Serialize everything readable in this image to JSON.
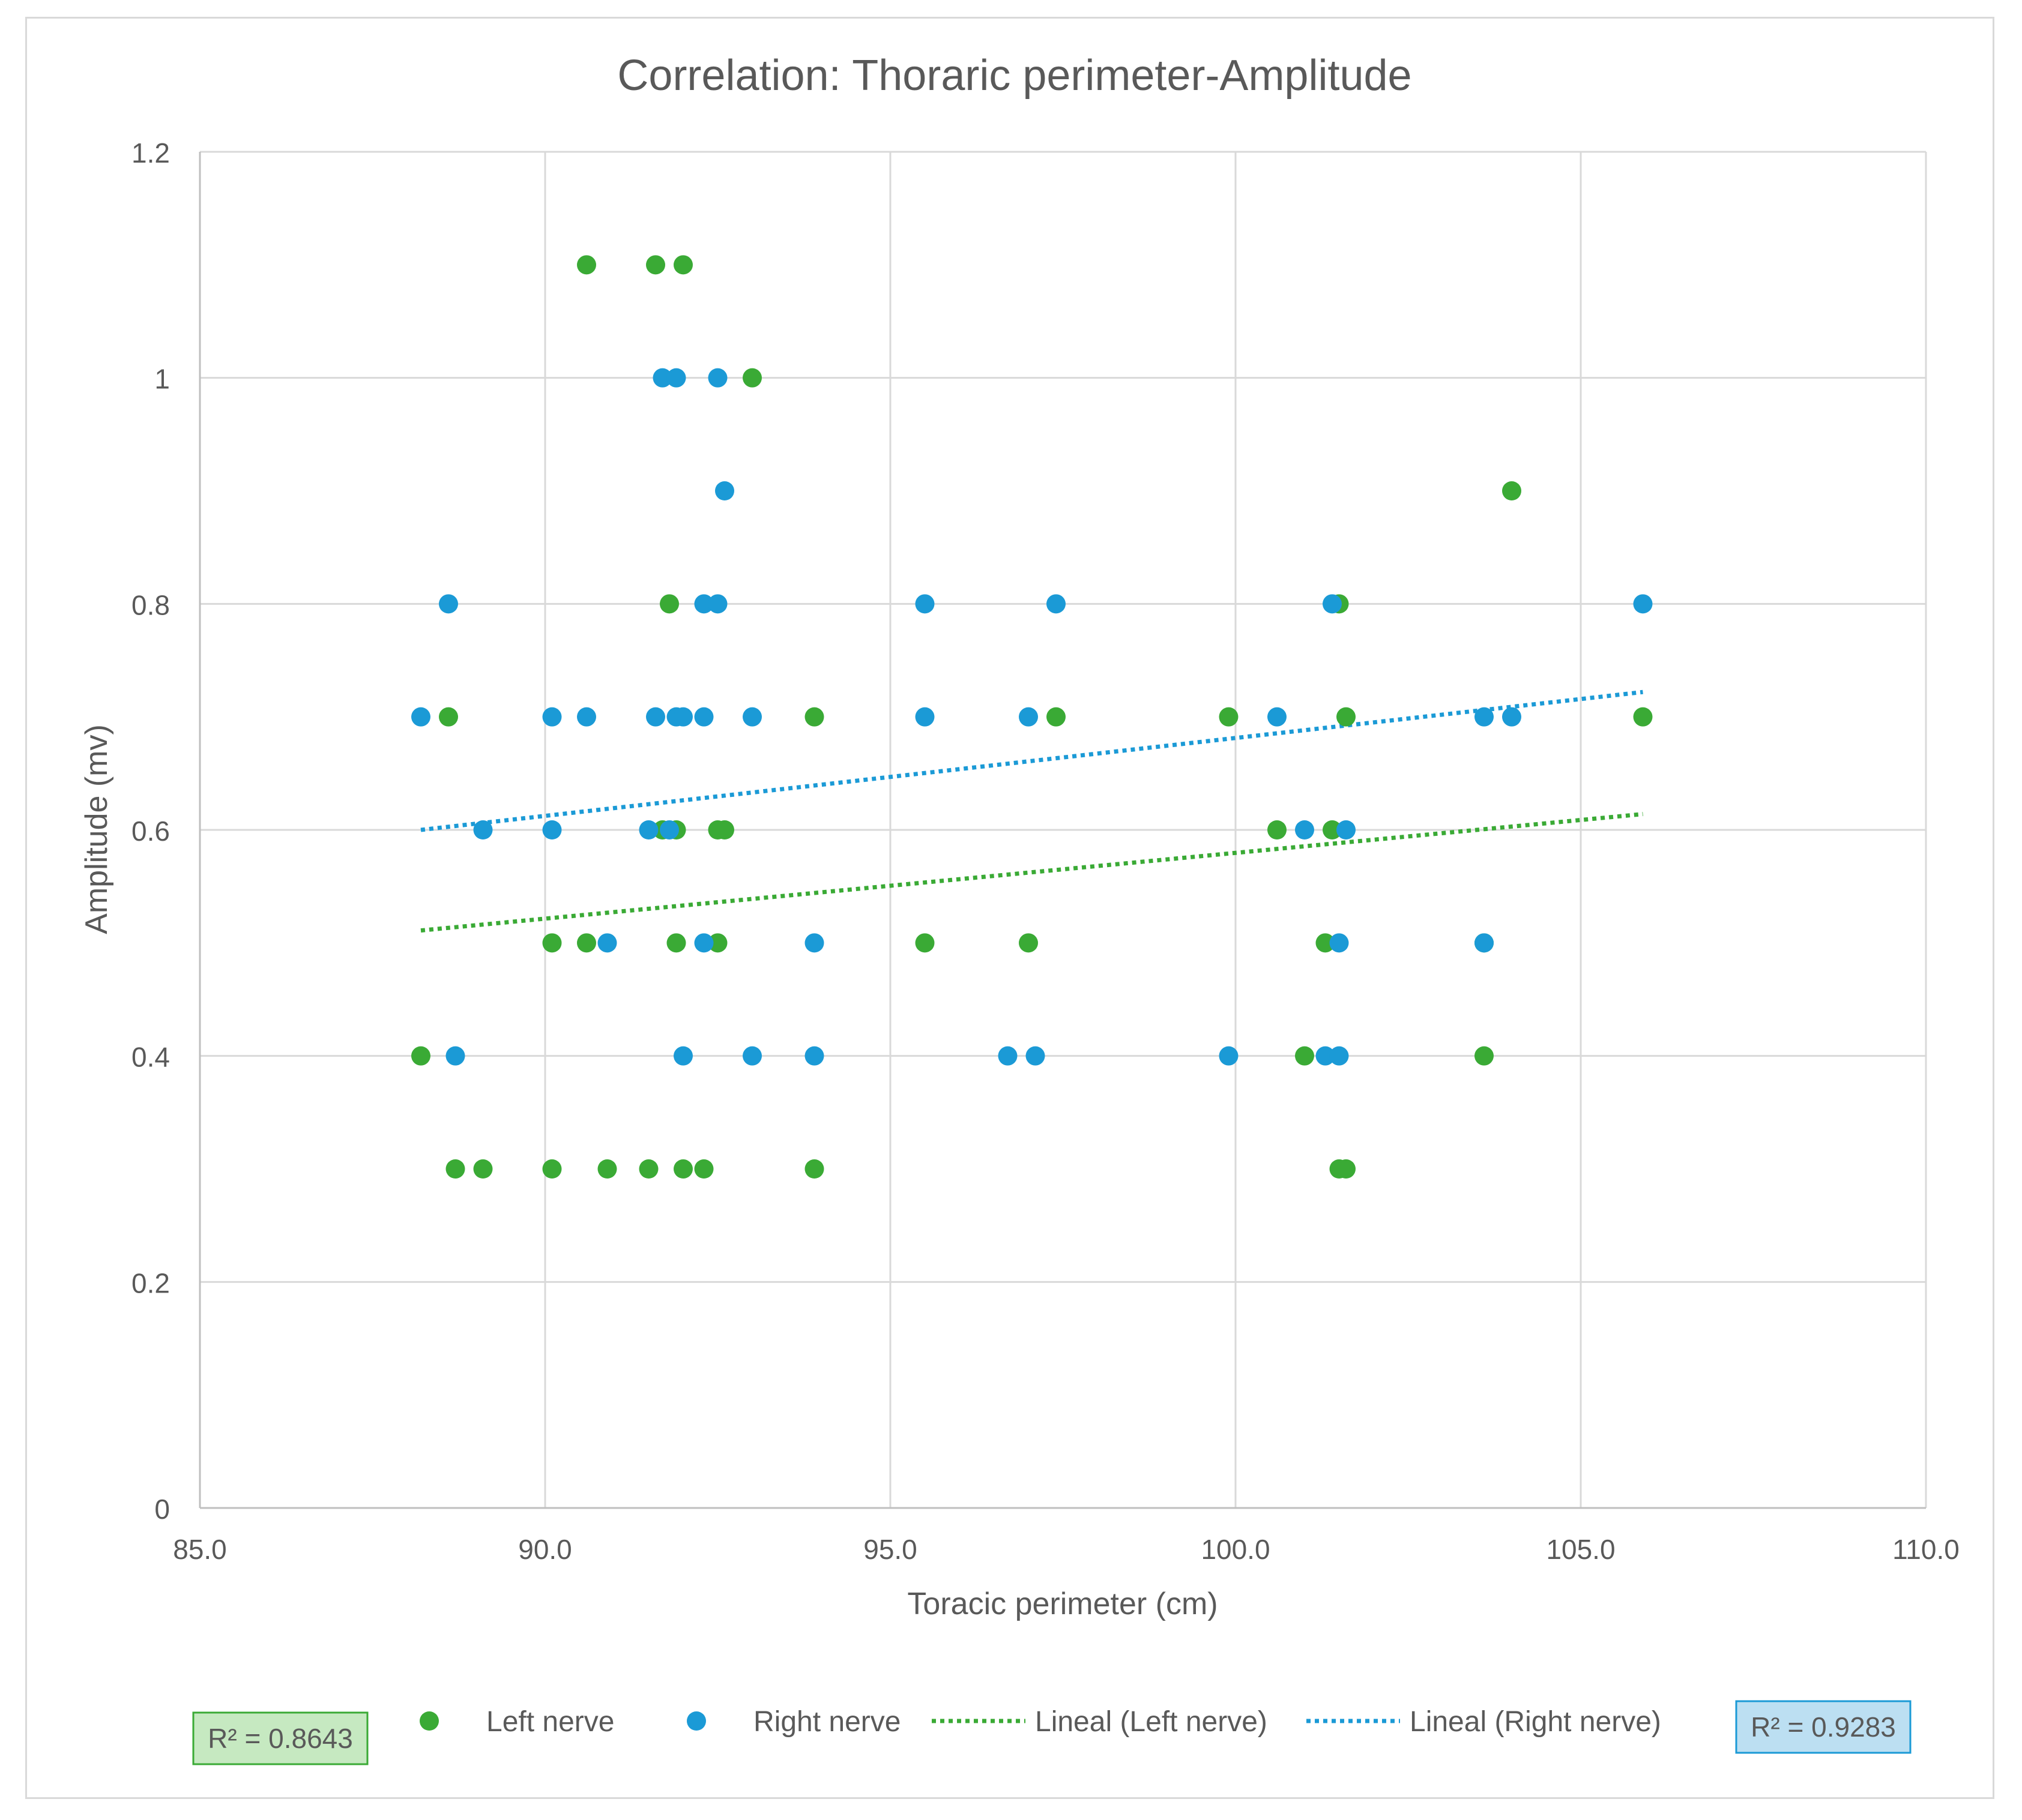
{
  "chart_data": {
    "type": "scatter",
    "title": "Correlation: Thoraric perimeter-Amplitude",
    "xlabel": "Toracic perimeter (cm)",
    "ylabel": "Amplitude (mv)",
    "xlim": [
      85.0,
      110.0
    ],
    "ylim": [
      0,
      1.2
    ],
    "x_ticks": [
      "85.0",
      "90.0",
      "95.0",
      "100.0",
      "105.0",
      "110.0"
    ],
    "x_tick_values": [
      85,
      90,
      95,
      100,
      105,
      110
    ],
    "y_ticks": [
      "0",
      "0.2",
      "0.4",
      "0.6",
      "0.8",
      "1",
      "1.2"
    ],
    "y_tick_values": [
      0,
      0.2,
      0.4,
      0.6,
      0.8,
      1.0,
      1.2
    ],
    "grid": true,
    "legend_position": "bottom",
    "series": [
      {
        "name": "Left nerve",
        "color": "#3aaa35",
        "points": [
          [
            88.2,
            0.4
          ],
          [
            88.6,
            0.7
          ],
          [
            88.7,
            0.3
          ],
          [
            89.1,
            0.3
          ],
          [
            90.1,
            0.5
          ],
          [
            90.1,
            0.3
          ],
          [
            90.6,
            1.1
          ],
          [
            90.6,
            0.5
          ],
          [
            90.9,
            0.3
          ],
          [
            91.5,
            0.3
          ],
          [
            91.6,
            1.1
          ],
          [
            91.7,
            0.6
          ],
          [
            91.8,
            0.8
          ],
          [
            91.9,
            0.5
          ],
          [
            91.9,
            0.6
          ],
          [
            92.0,
            1.1
          ],
          [
            92.0,
            0.3
          ],
          [
            92.3,
            0.3
          ],
          [
            92.5,
            0.6
          ],
          [
            92.5,
            0.5
          ],
          [
            92.6,
            0.6
          ],
          [
            93.0,
            1.0
          ],
          [
            93.9,
            0.7
          ],
          [
            93.9,
            0.3
          ],
          [
            95.5,
            0.5
          ],
          [
            97.0,
            0.5
          ],
          [
            97.4,
            0.7
          ],
          [
            99.9,
            0.7
          ],
          [
            100.6,
            0.6
          ],
          [
            101.0,
            0.4
          ],
          [
            101.3,
            0.5
          ],
          [
            101.4,
            0.6
          ],
          [
            101.5,
            0.8
          ],
          [
            101.5,
            0.3
          ],
          [
            101.6,
            0.7
          ],
          [
            101.6,
            0.3
          ],
          [
            103.6,
            0.5
          ],
          [
            103.6,
            0.4
          ],
          [
            104.0,
            0.9
          ],
          [
            105.9,
            0.7
          ]
        ]
      },
      {
        "name": "Right nerve",
        "color": "#1b9ad6",
        "points": [
          [
            88.2,
            0.7
          ],
          [
            88.6,
            0.8
          ],
          [
            88.7,
            0.4
          ],
          [
            89.1,
            0.6
          ],
          [
            90.1,
            0.7
          ],
          [
            90.1,
            0.6
          ],
          [
            90.6,
            0.7
          ],
          [
            90.9,
            0.5
          ],
          [
            91.5,
            0.6
          ],
          [
            91.6,
            0.7
          ],
          [
            91.7,
            1.0
          ],
          [
            91.8,
            0.6
          ],
          [
            91.9,
            0.7
          ],
          [
            91.9,
            1.0
          ],
          [
            92.0,
            0.7
          ],
          [
            92.0,
            0.4
          ],
          [
            92.3,
            0.8
          ],
          [
            92.3,
            0.7
          ],
          [
            92.3,
            0.5
          ],
          [
            92.5,
            1.0
          ],
          [
            92.5,
            0.8
          ],
          [
            92.6,
            0.9
          ],
          [
            93.0,
            0.7
          ],
          [
            93.0,
            0.4
          ],
          [
            93.9,
            0.5
          ],
          [
            93.9,
            0.4
          ],
          [
            95.5,
            0.8
          ],
          [
            95.5,
            0.7
          ],
          [
            96.7,
            0.4
          ],
          [
            97.0,
            0.7
          ],
          [
            97.1,
            0.4
          ],
          [
            97.4,
            0.8
          ],
          [
            99.9,
            0.4
          ],
          [
            100.6,
            0.7
          ],
          [
            101.0,
            0.6
          ],
          [
            101.3,
            0.4
          ],
          [
            101.4,
            0.8
          ],
          [
            101.5,
            0.5
          ],
          [
            101.5,
            0.4
          ],
          [
            101.6,
            0.6
          ],
          [
            103.6,
            0.7
          ],
          [
            103.6,
            0.5
          ],
          [
            104.0,
            0.7
          ],
          [
            105.9,
            0.8
          ]
        ]
      }
    ],
    "trendlines": [
      {
        "name": "Lineal (Left nerve)",
        "color": "#3aaa35",
        "x": [
          88.2,
          105.9
        ],
        "y": [
          0.511,
          0.614
        ]
      },
      {
        "name": "Lineal (Right nerve)",
        "color": "#1b9ad6",
        "x": [
          88.2,
          105.9
        ],
        "y": [
          0.6,
          0.722
        ]
      }
    ],
    "annotations": [
      {
        "label": "R² = 0.8643",
        "fill": "#c6e9c1",
        "stroke": "#3aaa35"
      },
      {
        "label": "R² = 0.9283",
        "fill": "#bcdff2",
        "stroke": "#1b9ad6"
      }
    ]
  }
}
